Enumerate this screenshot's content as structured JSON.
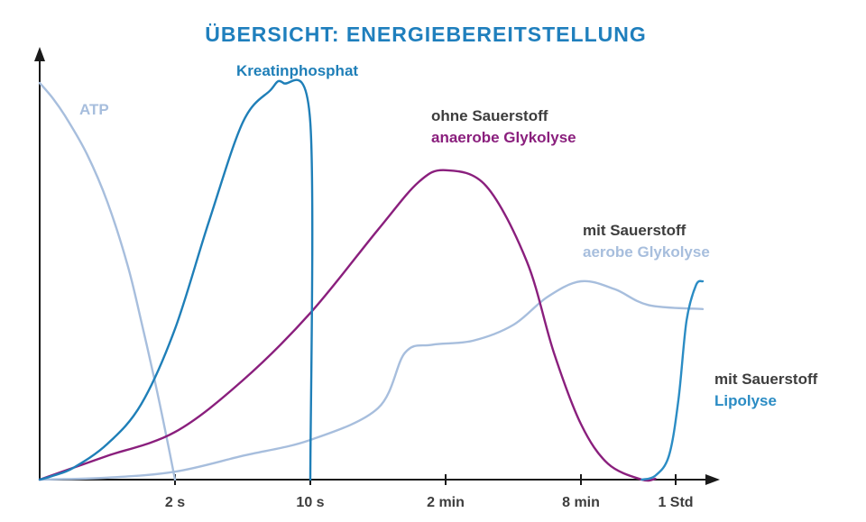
{
  "title": "ÜBERSICHT: ENERGIEBEREITSTELLUNG",
  "colors": {
    "title": "#1f7fbd",
    "axis": "#1a1a1a",
    "gray_text": "#3d3d3d",
    "atp": "#a7bedd",
    "kreatin": "#1f7fb8",
    "anaerob": "#8a1f7d",
    "aerob": "#a7bedd",
    "lipolyse": "#2b8cc4"
  },
  "chart_data": {
    "type": "line",
    "title": "ÜBERSICHT: ENERGIEBEREITSTELLUNG",
    "xlabel": "",
    "ylabel": "",
    "x_ticks": [
      "2 s",
      "10 s",
      "2 min",
      "8 min",
      "1 Std"
    ],
    "x_tick_positions": [
      1.0,
      2.0,
      3.0,
      4.0,
      4.7
    ],
    "xlim": [
      0,
      5.0
    ],
    "ylim": [
      0,
      100
    ],
    "series": [
      {
        "key": "atp",
        "name": "ATP",
        "x": [
          0.0,
          0.1,
          0.2,
          0.35,
          0.5,
          0.65,
          0.75,
          0.85,
          0.93,
          1.0
        ],
        "y": [
          100,
          96,
          91,
          82,
          70,
          54,
          40,
          25,
          12,
          0
        ]
      },
      {
        "key": "kreatin",
        "name": "Kreatinphosphat",
        "x": [
          0.0,
          0.1,
          0.25,
          0.5,
          0.75,
          1.0,
          1.25,
          1.5,
          1.7,
          1.8,
          2.0,
          2.0
        ],
        "y": [
          0,
          1,
          3,
          9,
          19,
          38,
          65,
          90,
          98,
          100,
          90,
          0
        ]
      },
      {
        "key": "anaerob",
        "name": "anaerobe Glykolyse",
        "x": [
          0.0,
          0.25,
          0.5,
          1.0,
          1.5,
          2.0,
          2.5,
          2.8,
          3.0,
          3.3,
          3.6,
          3.8,
          4.0,
          4.2,
          4.45,
          4.55
        ],
        "y": [
          0,
          3,
          6,
          12,
          25,
          42,
          63,
          75,
          78,
          74,
          55,
          32,
          14,
          4,
          0,
          0.2
        ]
      },
      {
        "key": "aerob",
        "name": "aerobe Glykolyse",
        "x": [
          0.0,
          0.5,
          1.0,
          1.5,
          2.0,
          2.5,
          2.7,
          2.9,
          3.2,
          3.5,
          3.75,
          4.0,
          4.25,
          4.5,
          4.9
        ],
        "y": [
          0,
          0.5,
          2,
          6,
          10,
          18,
          32,
          34,
          35,
          39,
          46,
          50,
          48,
          44,
          43
        ]
      },
      {
        "key": "lipolyse",
        "name": "Lipolyse",
        "x": [
          4.45,
          4.55,
          4.65,
          4.72,
          4.78,
          4.85,
          4.9
        ],
        "y": [
          0,
          1,
          6,
          20,
          40,
          49,
          50
        ]
      }
    ]
  },
  "labels": {
    "atp": "ATP",
    "kreatin": "Kreatinphosphat",
    "anaerob_line1": "ohne Sauerstoff",
    "anaerob_line2": "anaerobe Glykolyse",
    "aerob_line1": "mit Sauerstoff",
    "aerob_line2": "aerobe Glykolyse",
    "lipo_line1": "mit Sauerstoff",
    "lipo_line2": "Lipolyse"
  }
}
